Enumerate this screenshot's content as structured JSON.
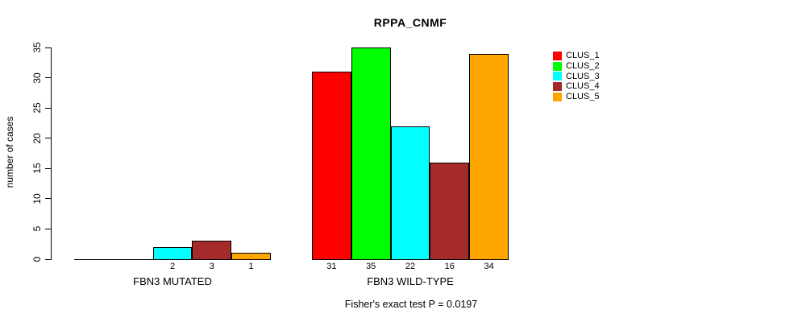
{
  "chart_data": {
    "type": "bar",
    "title": "RPPA_CNMF",
    "xlabel": "",
    "ylabel": "number of cases",
    "ylim": [
      0,
      35
    ],
    "yticks": [
      0,
      5,
      10,
      15,
      20,
      25,
      30,
      35
    ],
    "grid": false,
    "legend_position": "right-outside",
    "categories": [
      "FBN3 MUTATED",
      "FBN3 WILD-TYPE"
    ],
    "series": [
      {
        "name": "CLUS_1",
        "color": "#FF0000",
        "values": [
          0,
          31
        ]
      },
      {
        "name": "CLUS_2",
        "color": "#00FF00",
        "values": [
          0,
          35
        ]
      },
      {
        "name": "CLUS_3",
        "color": "#00FFFF",
        "values": [
          2,
          22
        ]
      },
      {
        "name": "CLUS_4",
        "color": "#A52A2A",
        "values": [
          3,
          16
        ]
      },
      {
        "name": "CLUS_5",
        "color": "#FFA500",
        "values": [
          1,
          34
        ]
      }
    ],
    "bar_value_labels": {
      "shown_for_nonzero_only": true
    },
    "annotation": "Fisher's exact test P = 0.0197",
    "colors": {
      "background": "#FFFFFF",
      "axis": "#000000",
      "bar_border": "#000000",
      "text": "#000000"
    }
  }
}
